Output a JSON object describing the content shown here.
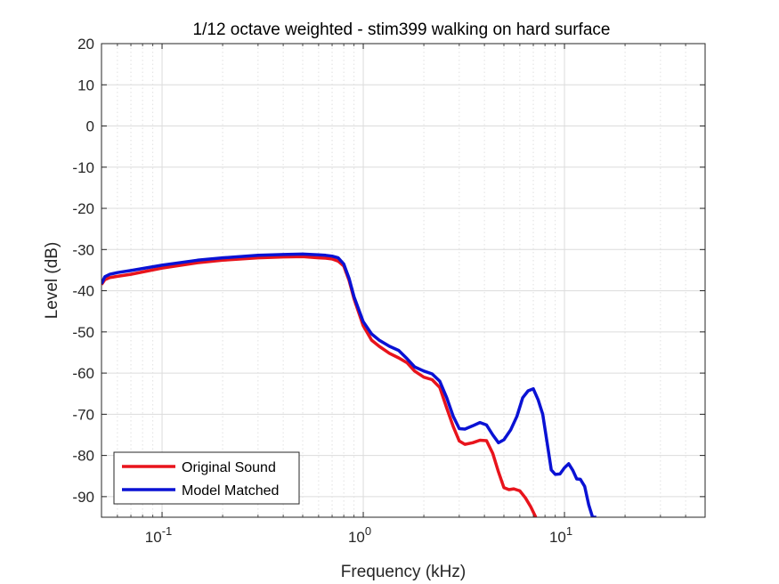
{
  "chart_data": {
    "type": "line",
    "title": "1/12 octave weighted - stim399 walking on hard surface",
    "xlabel": "Frequency (kHz)",
    "ylabel": "Level (dB)",
    "xscale": "log",
    "xlim": [
      0.05,
      50
    ],
    "ylim": [
      -95,
      20
    ],
    "yticks": [
      20,
      10,
      0,
      -10,
      -20,
      -30,
      -40,
      -50,
      -60,
      -70,
      -80,
      -90
    ],
    "xticks": [
      {
        "value": 0.1,
        "base": "10",
        "exp": "-1"
      },
      {
        "value": 1,
        "base": "10",
        "exp": "0"
      },
      {
        "value": 10,
        "base": "10",
        "exp": "1"
      }
    ],
    "grid": true,
    "legend_position": "bottom-left",
    "series": [
      {
        "name": "Original Sound",
        "color": "#e8141c",
        "x": [
          0.05,
          0.052,
          0.055,
          0.06,
          0.07,
          0.1,
          0.15,
          0.2,
          0.3,
          0.4,
          0.5,
          0.6,
          0.65,
          0.7,
          0.75,
          0.8,
          0.85,
          0.9,
          1.0,
          1.1,
          1.2,
          1.35,
          1.5,
          1.65,
          1.8,
          2.0,
          2.2,
          2.4,
          2.6,
          2.8,
          3.0,
          3.2,
          3.5,
          3.8,
          4.1,
          4.4,
          4.7,
          5.0,
          5.3,
          5.6,
          6.0,
          6.4,
          6.8,
          7.2
        ],
        "y": [
          -38.5,
          -37.3,
          -36.8,
          -36.5,
          -36.0,
          -34.5,
          -33.2,
          -32.6,
          -32.0,
          -31.8,
          -31.7,
          -32.0,
          -32.1,
          -32.3,
          -32.8,
          -34.0,
          -37.5,
          -42.0,
          -48.5,
          -52.0,
          -53.5,
          -55.2,
          -56.3,
          -57.5,
          -59.5,
          -61.0,
          -61.6,
          -63.5,
          -68.5,
          -73.0,
          -76.5,
          -77.3,
          -76.9,
          -76.3,
          -76.4,
          -79.5,
          -84.0,
          -87.8,
          -88.3,
          -88.1,
          -88.6,
          -90.3,
          -92.5,
          -95
        ]
      },
      {
        "name": "Model Matched",
        "color": "#0a12d4",
        "x": [
          0.05,
          0.052,
          0.055,
          0.06,
          0.07,
          0.1,
          0.15,
          0.2,
          0.3,
          0.4,
          0.5,
          0.6,
          0.65,
          0.7,
          0.75,
          0.8,
          0.85,
          0.9,
          1.0,
          1.1,
          1.2,
          1.35,
          1.5,
          1.65,
          1.8,
          2.0,
          2.2,
          2.4,
          2.6,
          2.8,
          3.0,
          3.2,
          3.5,
          3.8,
          4.1,
          4.4,
          4.7,
          5.0,
          5.4,
          5.8,
          6.2,
          6.6,
          7.0,
          7.4,
          7.8,
          8.2,
          8.6,
          9.0,
          9.5,
          10.0,
          10.5,
          11.0,
          11.5,
          12.0,
          12.6,
          13.2,
          13.8,
          14.4
        ],
        "y": [
          -38.3,
          -36.6,
          -36.0,
          -35.6,
          -35.1,
          -33.8,
          -32.6,
          -32.0,
          -31.4,
          -31.2,
          -31.1,
          -31.3,
          -31.4,
          -31.6,
          -32.0,
          -33.5,
          -37.0,
          -41.5,
          -47.5,
          -50.5,
          -52.0,
          -53.5,
          -54.5,
          -56.5,
          -58.5,
          -59.5,
          -60.2,
          -62.0,
          -66.0,
          -70.5,
          -73.5,
          -73.6,
          -72.8,
          -72.0,
          -72.6,
          -75.0,
          -76.9,
          -76.2,
          -73.8,
          -70.5,
          -66.0,
          -64.3,
          -63.8,
          -66.5,
          -70.0,
          -77.0,
          -83.5,
          -84.6,
          -84.5,
          -83.0,
          -82.0,
          -83.6,
          -85.7,
          -85.8,
          -87.5,
          -92.0,
          -95,
          -95
        ]
      }
    ]
  }
}
